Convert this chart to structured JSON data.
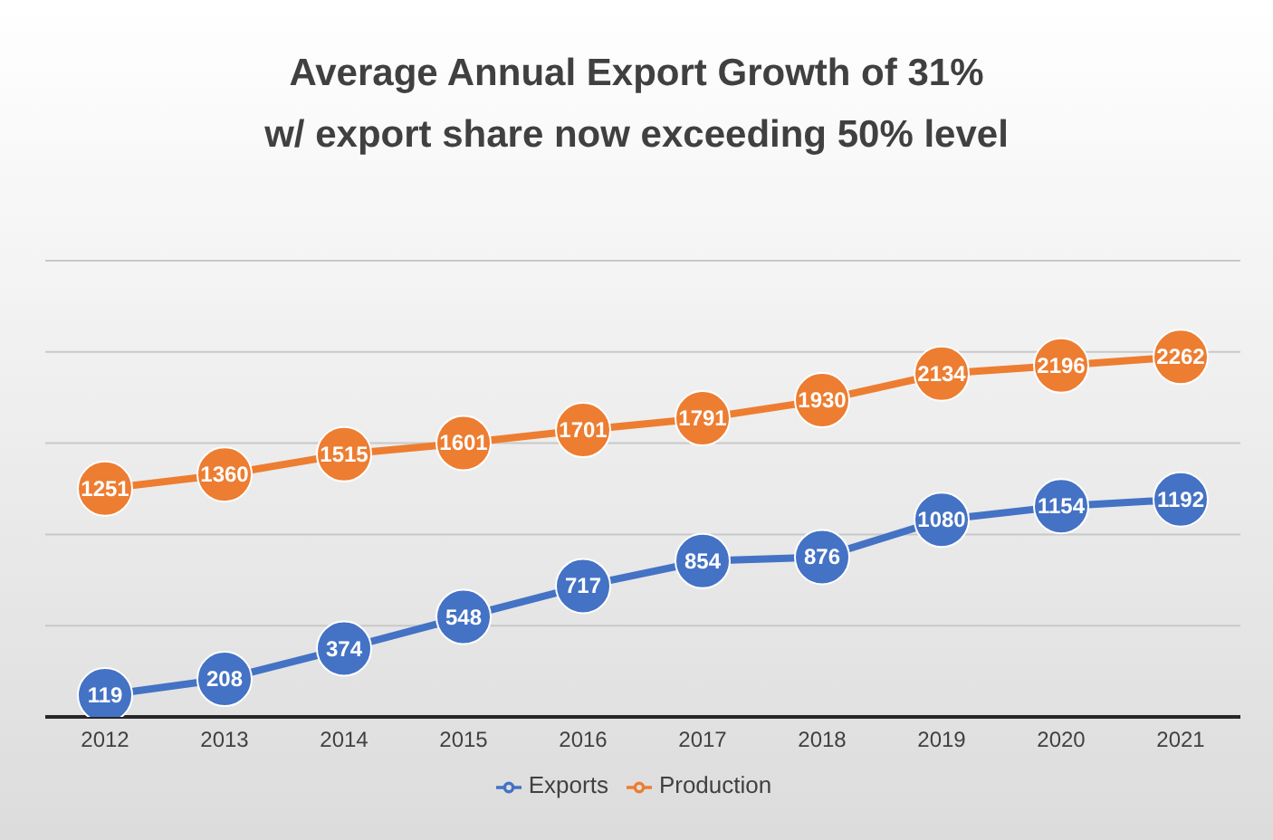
{
  "chart_data": {
    "type": "line",
    "title": "Average Annual Export Growth of 31%\nw/ export share now exceeding 50% level",
    "categories": [
      "2012",
      "2013",
      "2014",
      "2015",
      "2016",
      "2017",
      "2018",
      "2019",
      "2020",
      "2021"
    ],
    "series": [
      {
        "name": "Exports",
        "color": "#4472c4",
        "values": [
          119,
          208,
          374,
          548,
          717,
          854,
          876,
          1080,
          1154,
          1192
        ]
      },
      {
        "name": "Production",
        "color": "#ed7d31",
        "axis": "y2",
        "values": [
          1251,
          1360,
          1515,
          1601,
          1701,
          1791,
          1930,
          2134,
          2196,
          2262
        ]
      }
    ],
    "ylim": [
      0,
      2500
    ],
    "y2lim": [
      -500,
      3000
    ],
    "tick_labels": "x",
    "grid": "y",
    "legend": "bottom",
    "marker": "circle",
    "line_style": "solid",
    "data_labels": true
  }
}
